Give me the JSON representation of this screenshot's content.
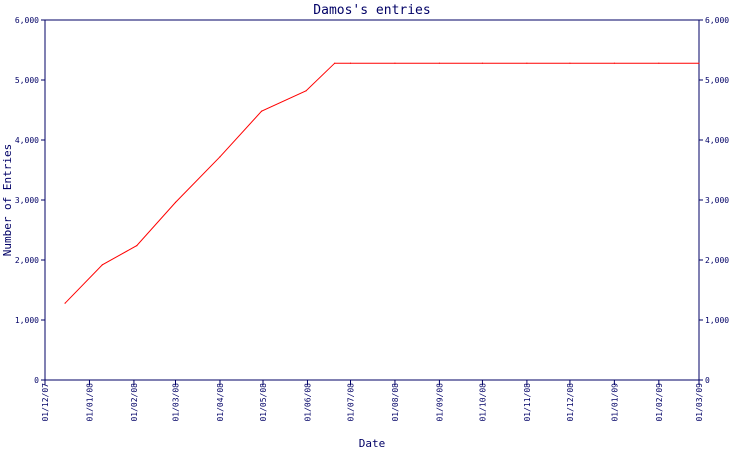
{
  "chart_data": {
    "type": "line",
    "title": "Damos's entries",
    "xlabel": "Date",
    "ylabel": "Number of Entries",
    "x_ticks": [
      "01/12/07",
      "01/01/08",
      "01/02/08",
      "01/03/08",
      "01/04/08",
      "01/05/08",
      "01/06/08",
      "01/07/08",
      "01/08/08",
      "01/09/08",
      "01/10/08",
      "01/11/08",
      "01/12/08",
      "01/01/09",
      "01/02/09",
      "01/03/09"
    ],
    "y_ticks": [
      "0",
      "1,000",
      "2,000",
      "3,000",
      "4,000",
      "5,000",
      "6,000"
    ],
    "ylim": [
      0,
      6000
    ],
    "xlim": [
      "2007-12-01",
      "2009-03-01"
    ],
    "series": [
      {
        "color": "#ff0000",
        "x": [
          "2007-12-15",
          "2008-01-10",
          "2008-02-03",
          "2008-03-01",
          "2008-04-01",
          "2008-04-30",
          "2008-05-31",
          "2008-06-20",
          "2008-07-01",
          "2008-08-01",
          "2008-09-01",
          "2008-10-01",
          "2008-11-01",
          "2008-12-01",
          "2009-01-01",
          "2009-02-01",
          "2009-03-01"
        ],
        "values": [
          1280,
          1920,
          2240,
          2960,
          3720,
          4480,
          4820,
          5280,
          5280,
          5280,
          5280,
          5280,
          5280,
          5280,
          5280,
          5280,
          5280
        ]
      }
    ],
    "grid": false,
    "right_axis": true
  },
  "colors": {
    "axis": "#000066",
    "background": "#ffffff"
  }
}
